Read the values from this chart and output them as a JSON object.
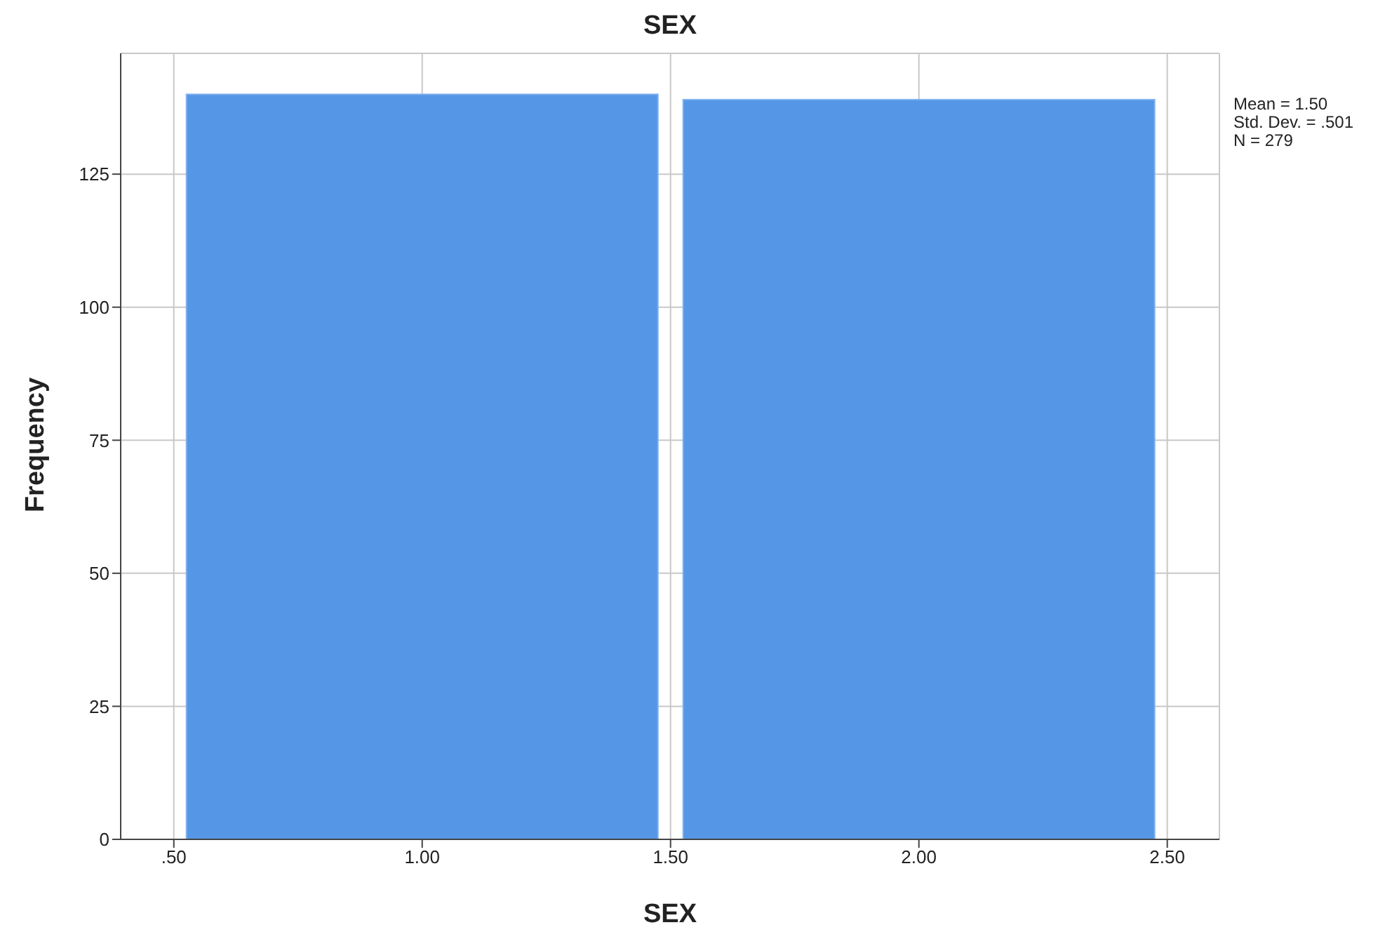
{
  "chart_data": {
    "type": "histogram",
    "title": "SEX",
    "xlabel": "SEX",
    "ylabel": "Frequency",
    "bins": [
      0.5,
      1.5,
      2.5
    ],
    "values": [
      140,
      139
    ],
    "color": "#5596e6",
    "xlim": [
      0.393,
      2.605
    ],
    "xticks": [
      {
        "value": 0.5,
        "label": ".50"
      },
      {
        "value": 1,
        "label": "1.00"
      },
      {
        "value": 1.5,
        "label": "1.50"
      },
      {
        "value": 2,
        "label": "2.00"
      },
      {
        "value": 2.5,
        "label": "2.50"
      }
    ],
    "ylim": [
      0,
      147.7
    ],
    "yticks": [
      0,
      25,
      50,
      75,
      100,
      125
    ],
    "grid": true,
    "annotations": [
      "Mean = 1.50",
      "Std. Dev. = .501",
      "N = 279"
    ]
  }
}
